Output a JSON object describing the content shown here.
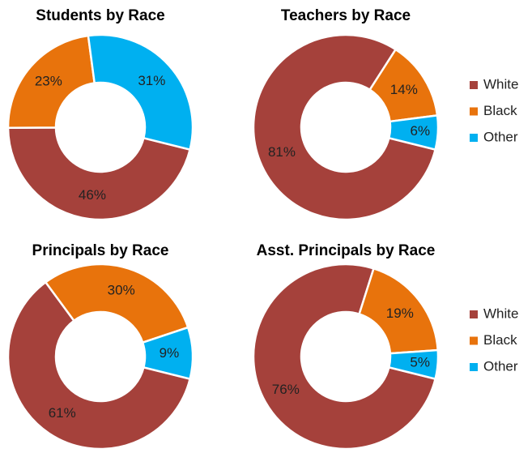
{
  "chart_data": [
    {
      "type": "donut",
      "title": "Students by Race",
      "values": [
        46,
        23,
        31
      ],
      "value_labels": [
        "46%",
        "23%",
        "31%"
      ],
      "colors": [
        "#a5413b",
        "#e8730c",
        "#00b0f0"
      ]
    },
    {
      "type": "donut",
      "title": "Teachers by Race",
      "categories": [
        "White",
        "Black",
        "Other"
      ],
      "values": [
        81,
        14,
        6
      ],
      "value_labels": [
        "81%",
        "14%",
        "6%"
      ],
      "colors": [
        "#a5413b",
        "#e8730c",
        "#00b0f0"
      ],
      "legend": "right"
    },
    {
      "type": "donut",
      "title": "Principals by Race",
      "values": [
        61,
        30,
        9
      ],
      "value_labels": [
        "61%",
        "30%",
        "9%"
      ],
      "colors": [
        "#a5413b",
        "#e8730c",
        "#00b0f0"
      ]
    },
    {
      "type": "donut",
      "title": "Asst. Principals by Race",
      "categories": [
        "White",
        "Black",
        "Other"
      ],
      "values": [
        76,
        19,
        5
      ],
      "value_labels": [
        "76%",
        "19%",
        "5%"
      ],
      "colors": [
        "#a5413b",
        "#e8730c",
        "#00b0f0"
      ],
      "legend": "right"
    }
  ]
}
